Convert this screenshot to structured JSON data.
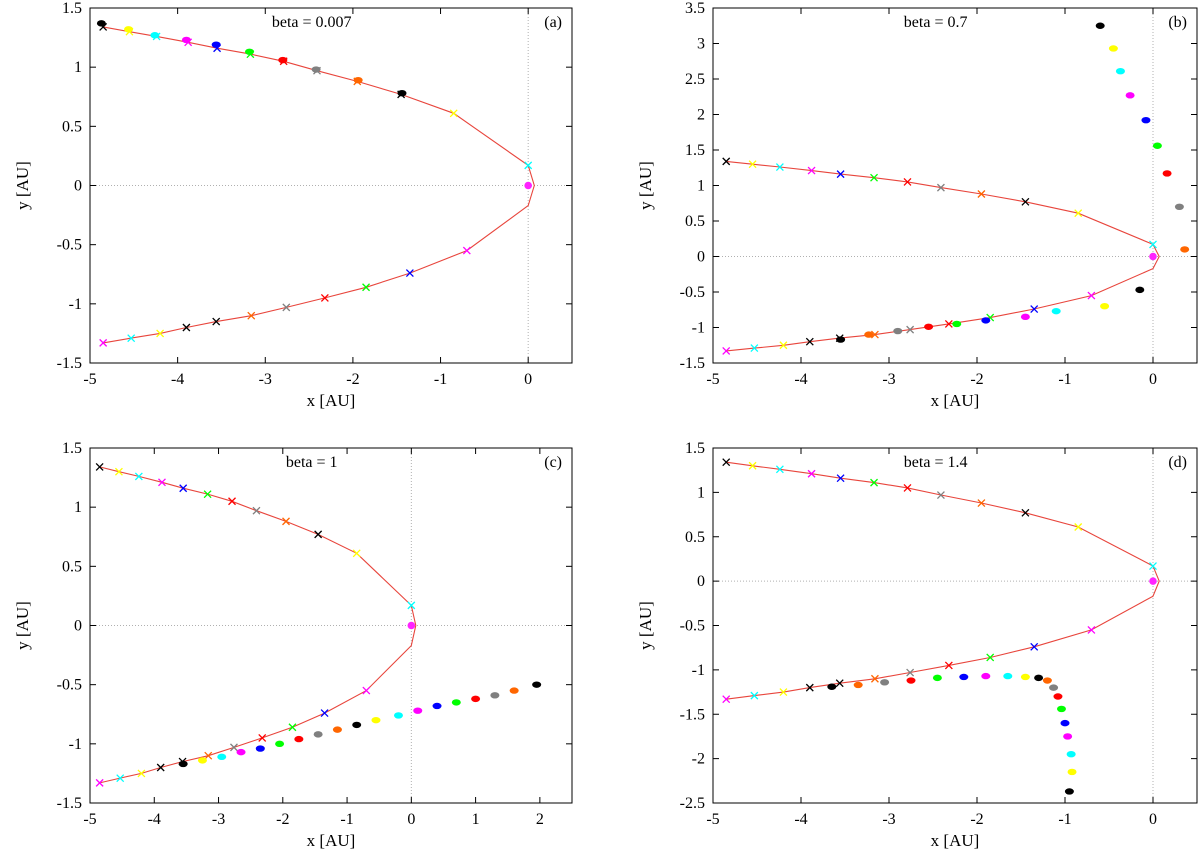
{
  "figure": {
    "panels": [
      "a",
      "b",
      "c",
      "d"
    ]
  },
  "colors": {
    "orbit": "#e8453c",
    "sun": "#ff22ff",
    "grid": "#b0b0b0",
    "palette": [
      "#000000",
      "#ffff00",
      "#00ffff",
      "#ff00ff",
      "#0000ff",
      "#00ff00",
      "#ff0000",
      "#808080",
      "#ff6600",
      "#000000",
      "#ffff00",
      "#00ffff",
      "#ff00ff",
      "#0000ff",
      "#00ff00",
      "#ff0000",
      "#808080",
      "#ff6600",
      "#000000"
    ]
  },
  "chart_data": [
    {
      "type": "scatter",
      "panel_label": "(a)",
      "annotation": "beta = 0.007",
      "xlabel": "x [AU]",
      "ylabel": "y [AU]",
      "xlim": [
        -5,
        0.5
      ],
      "ylim": [
        -1.5,
        1.5
      ],
      "xticks": [
        -5,
        -4,
        -3,
        -2,
        -1,
        0
      ],
      "yticks": [
        -1.5,
        -1,
        -0.5,
        0,
        0.5,
        1,
        1.5
      ],
      "xtick_labels": [
        "-5",
        "-4",
        "-3",
        "-2",
        "-1",
        "0"
      ],
      "ytick_labels": [
        "-1.5",
        "-1",
        "-0.5",
        "0",
        "0.5",
        "1",
        "1.5"
      ],
      "grid": "dotted lines at x=0 and y=0",
      "series": [
        {
          "kind": "orbit",
          "x": [
            -4.85,
            -4.55,
            -4.24,
            -3.88,
            -3.55,
            -3.17,
            -2.79,
            -2.41,
            -1.95,
            -1.45,
            -0.85,
            0,
            0.07,
            0,
            -0.7,
            -1.35,
            -1.85,
            -2.32,
            -2.76,
            -3.16,
            -3.56,
            -3.9,
            -4.2,
            -4.53,
            -4.85
          ],
          "y": [
            1.34,
            1.3,
            1.26,
            1.21,
            1.16,
            1.11,
            1.05,
            0.97,
            0.88,
            0.77,
            0.61,
            0.17,
            0,
            -0.17,
            -0.55,
            -0.74,
            -0.86,
            -0.95,
            -1.03,
            -1.1,
            -1.15,
            -1.2,
            -1.25,
            -1.29,
            -1.33
          ]
        },
        {
          "kind": "markers",
          "x": [
            -4.85,
            -4.55,
            -4.24,
            -3.88,
            -3.55,
            -3.17,
            -2.79,
            -2.41,
            -1.95,
            -1.45,
            -0.85,
            0.0,
            -0.7,
            -1.35,
            -1.85,
            -2.32,
            -2.76,
            -3.16,
            -3.56,
            -3.9,
            -4.2,
            -4.53,
            -4.85
          ],
          "y": [
            1.34,
            1.3,
            1.26,
            1.21,
            1.16,
            1.11,
            1.05,
            0.97,
            0.88,
            0.77,
            0.61,
            0.17,
            -0.55,
            -0.74,
            -0.86,
            -0.95,
            -1.03,
            -1.1,
            -1.15,
            -1.2,
            -1.25,
            -1.29,
            -1.33
          ]
        },
        {
          "kind": "dust",
          "x": [
            -4.87,
            -4.56,
            -4.26,
            -3.9,
            -3.56,
            -3.18,
            -2.8,
            -2.42,
            -1.94,
            -1.44
          ],
          "y": [
            1.37,
            1.32,
            1.27,
            1.23,
            1.19,
            1.13,
            1.06,
            0.98,
            0.89,
            0.78
          ]
        },
        {
          "kind": "sun",
          "x": [
            0
          ],
          "y": [
            0
          ]
        }
      ]
    },
    {
      "type": "scatter",
      "panel_label": "(b)",
      "annotation": "beta = 0.7",
      "xlabel": "x [AU]",
      "ylabel": "y [AU]",
      "xlim": [
        -5,
        0.5
      ],
      "ylim": [
        -1.5,
        3.5
      ],
      "xticks": [
        -5,
        -4,
        -3,
        -2,
        -1,
        0
      ],
      "yticks": [
        -1.5,
        -1,
        -0.5,
        0,
        0.5,
        1,
        1.5,
        2,
        2.5,
        3,
        3.5
      ],
      "xtick_labels": [
        "-5",
        "-4",
        "-3",
        "-2",
        "-1",
        "0"
      ],
      "ytick_labels": [
        "-1.5",
        "-1",
        "-0.5",
        "0",
        "0.5",
        "1",
        "1.5",
        "2",
        "2.5",
        "3",
        "3.5"
      ],
      "grid": "dotted lines at x=0 and y=0",
      "series": [
        {
          "kind": "orbit",
          "x": [
            -4.85,
            -4.55,
            -4.24,
            -3.88,
            -3.55,
            -3.17,
            -2.79,
            -2.41,
            -1.95,
            -1.45,
            -0.85,
            0,
            0.07,
            0,
            -0.7,
            -1.35,
            -1.85,
            -2.32,
            -2.76,
            -3.16,
            -3.56,
            -3.9,
            -4.2,
            -4.53,
            -4.85
          ],
          "y": [
            1.34,
            1.3,
            1.26,
            1.21,
            1.16,
            1.11,
            1.05,
            0.97,
            0.88,
            0.77,
            0.61,
            0.17,
            0,
            -0.17,
            -0.55,
            -0.74,
            -0.86,
            -0.95,
            -1.03,
            -1.1,
            -1.15,
            -1.2,
            -1.25,
            -1.29,
            -1.33
          ]
        },
        {
          "kind": "markers",
          "x": [
            -4.85,
            -4.55,
            -4.24,
            -3.88,
            -3.55,
            -3.17,
            -2.79,
            -2.41,
            -1.95,
            -1.45,
            -0.85,
            0.0,
            -0.7,
            -1.35,
            -1.85,
            -2.32,
            -2.76,
            -3.16,
            -3.56,
            -3.9,
            -4.2,
            -4.53,
            -4.85
          ],
          "y": [
            1.34,
            1.3,
            1.26,
            1.21,
            1.16,
            1.11,
            1.05,
            0.97,
            0.88,
            0.77,
            0.61,
            0.17,
            -0.55,
            -0.74,
            -0.86,
            -0.95,
            -1.03,
            -1.1,
            -1.15,
            -1.2,
            -1.25,
            -1.29,
            -1.33
          ]
        },
        {
          "kind": "dust",
          "x": [
            -0.6,
            -0.45,
            -0.37,
            -0.26,
            -0.08,
            0.05,
            0.16,
            0.3,
            0.36,
            -0.15,
            -0.55,
            -1.1,
            -1.45,
            -1.9,
            -2.23,
            -2.55,
            -2.9,
            -3.23,
            -3.55
          ],
          "y": [
            3.25,
            2.93,
            2.61,
            2.27,
            1.92,
            1.56,
            1.17,
            0.7,
            0.1,
            -0.47,
            -0.7,
            -0.77,
            -0.85,
            -0.9,
            -0.95,
            -0.99,
            -1.05,
            -1.1,
            -1.17
          ]
        },
        {
          "kind": "sun",
          "x": [
            0
          ],
          "y": [
            0
          ]
        }
      ]
    },
    {
      "type": "scatter",
      "panel_label": "(c)",
      "annotation": "beta = 1",
      "xlabel": "x [AU]",
      "ylabel": "y [AU]",
      "xlim": [
        -5,
        2.5
      ],
      "ylim": [
        -1.5,
        1.5
      ],
      "xticks": [
        -5,
        -4,
        -3,
        -2,
        -1,
        0,
        1,
        2
      ],
      "yticks": [
        -1.5,
        -1,
        -0.5,
        0,
        0.5,
        1,
        1.5
      ],
      "xtick_labels": [
        "-5",
        "-4",
        "-3",
        "-2",
        "-1",
        "0",
        "1",
        "2"
      ],
      "ytick_labels": [
        "-1.5",
        "-1",
        "-0.5",
        "0",
        "0.5",
        "1",
        "1.5"
      ],
      "grid": "dotted lines at x=0 and y=0",
      "series": [
        {
          "kind": "orbit",
          "x": [
            -4.85,
            -4.55,
            -4.24,
            -3.88,
            -3.55,
            -3.17,
            -2.79,
            -2.41,
            -1.95,
            -1.45,
            -0.85,
            0,
            0.07,
            0,
            -0.7,
            -1.35,
            -1.85,
            -2.32,
            -2.76,
            -3.16,
            -3.56,
            -3.9,
            -4.2,
            -4.53,
            -4.85
          ],
          "y": [
            1.34,
            1.3,
            1.26,
            1.21,
            1.16,
            1.11,
            1.05,
            0.97,
            0.88,
            0.77,
            0.61,
            0.17,
            0,
            -0.17,
            -0.55,
            -0.74,
            -0.86,
            -0.95,
            -1.03,
            -1.1,
            -1.15,
            -1.2,
            -1.25,
            -1.29,
            -1.33
          ]
        },
        {
          "kind": "markers",
          "x": [
            -4.85,
            -4.55,
            -4.24,
            -3.88,
            -3.55,
            -3.17,
            -2.79,
            -2.41,
            -1.95,
            -1.45,
            -0.85,
            0.0,
            -0.7,
            -1.35,
            -1.85,
            -2.32,
            -2.76,
            -3.16,
            -3.56,
            -3.9,
            -4.2,
            -4.53,
            -4.85
          ],
          "y": [
            1.34,
            1.3,
            1.26,
            1.21,
            1.16,
            1.11,
            1.05,
            0.97,
            0.88,
            0.77,
            0.61,
            0.17,
            -0.55,
            -0.74,
            -0.86,
            -0.95,
            -1.03,
            -1.1,
            -1.15,
            -1.2,
            -1.25,
            -1.29,
            -1.33
          ]
        },
        {
          "kind": "dust",
          "x": [
            -3.55,
            -3.25,
            -2.95,
            -2.65,
            -2.35,
            -2.05,
            -1.75,
            -1.45,
            -1.15,
            -0.85,
            -0.55,
            -0.2,
            0.1,
            0.4,
            0.7,
            1.0,
            1.3,
            1.6,
            1.95
          ],
          "y": [
            -1.17,
            -1.14,
            -1.11,
            -1.07,
            -1.04,
            -1.0,
            -0.96,
            -0.92,
            -0.88,
            -0.84,
            -0.8,
            -0.76,
            -0.72,
            -0.68,
            -0.65,
            -0.62,
            -0.59,
            -0.55,
            -0.5
          ]
        },
        {
          "kind": "sun",
          "x": [
            0
          ],
          "y": [
            0
          ]
        }
      ]
    },
    {
      "type": "scatter",
      "panel_label": "(d)",
      "annotation": "beta = 1.4",
      "xlabel": "x [AU]",
      "ylabel": "y [AU]",
      "xlim": [
        -5,
        0.5
      ],
      "ylim": [
        -2.5,
        1.5
      ],
      "xticks": [
        -5,
        -4,
        -3,
        -2,
        -1,
        0
      ],
      "yticks": [
        -2.5,
        -2,
        -1.5,
        -1,
        -0.5,
        0,
        0.5,
        1,
        1.5
      ],
      "xtick_labels": [
        "-5",
        "-4",
        "-3",
        "-2",
        "-1",
        "0"
      ],
      "ytick_labels": [
        "-2.5",
        "-2",
        "-1.5",
        "-1",
        "-0.5",
        "0",
        "0.5",
        "1",
        "1.5"
      ],
      "grid": "dotted lines at x=0 and y=0",
      "series": [
        {
          "kind": "orbit",
          "x": [
            -4.85,
            -4.55,
            -4.24,
            -3.88,
            -3.55,
            -3.17,
            -2.79,
            -2.41,
            -1.95,
            -1.45,
            -0.85,
            0,
            0.07,
            0,
            -0.7,
            -1.35,
            -1.85,
            -2.32,
            -2.76,
            -3.16,
            -3.56,
            -3.9,
            -4.2,
            -4.53,
            -4.85
          ],
          "y": [
            1.34,
            1.3,
            1.26,
            1.21,
            1.16,
            1.11,
            1.05,
            0.97,
            0.88,
            0.77,
            0.61,
            0.17,
            0,
            -0.17,
            -0.55,
            -0.74,
            -0.86,
            -0.95,
            -1.03,
            -1.1,
            -1.15,
            -1.2,
            -1.25,
            -1.29,
            -1.33
          ]
        },
        {
          "kind": "markers",
          "x": [
            -4.85,
            -4.55,
            -4.24,
            -3.88,
            -3.55,
            -3.17,
            -2.79,
            -2.41,
            -1.95,
            -1.45,
            -0.85,
            0.0,
            -0.7,
            -1.35,
            -1.85,
            -2.32,
            -2.76,
            -3.16,
            -3.56,
            -3.9,
            -4.2,
            -4.53,
            -4.85
          ],
          "y": [
            1.34,
            1.3,
            1.26,
            1.21,
            1.16,
            1.11,
            1.05,
            0.97,
            0.88,
            0.77,
            0.61,
            0.17,
            -0.55,
            -0.74,
            -0.86,
            -0.95,
            -1.03,
            -1.1,
            -1.15,
            -1.2,
            -1.25,
            -1.29,
            -1.33
          ]
        },
        {
          "kind": "dust",
          "x": [
            -0.95,
            -0.92,
            -0.93,
            -0.97,
            -1.0,
            -1.04,
            -1.08,
            -1.13,
            -1.2,
            -1.3,
            -1.45,
            -1.65,
            -1.9,
            -2.15,
            -2.45,
            -2.75,
            -3.05,
            -3.35,
            -3.65
          ],
          "y": [
            -2.37,
            -2.15,
            -1.95,
            -1.75,
            -1.6,
            -1.44,
            -1.3,
            -1.2,
            -1.12,
            -1.09,
            -1.08,
            -1.07,
            -1.07,
            -1.08,
            -1.09,
            -1.12,
            -1.14,
            -1.17,
            -1.19
          ]
        },
        {
          "kind": "sun",
          "x": [
            0
          ],
          "y": [
            0
          ]
        }
      ]
    }
  ]
}
